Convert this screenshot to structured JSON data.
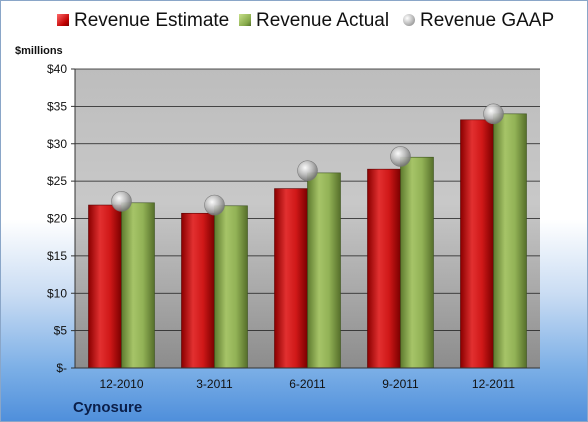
{
  "legend": {
    "estimate": "Revenue Estimate",
    "actual": "Revenue Actual",
    "gaap": "Revenue GAAP"
  },
  "units_label": "$millions",
  "company": "Cynosure",
  "colors": {
    "estimate": "#c81e1e",
    "actual": "#8fb050",
    "gaap": "#a8a8a8"
  },
  "chart_data": {
    "type": "bar",
    "title": "",
    "ylabel": "$millions",
    "xlabel": "",
    "categories": [
      "12-2010",
      "3-2011",
      "6-2011",
      "9-2011",
      "12-2011"
    ],
    "series": [
      {
        "name": "Revenue Estimate",
        "values": [
          21.8,
          20.7,
          24.0,
          26.6,
          33.2
        ]
      },
      {
        "name": "Revenue Actual",
        "values": [
          22.1,
          21.7,
          26.1,
          28.2,
          34.0
        ]
      },
      {
        "name": "Revenue GAAP",
        "values": [
          22.3,
          21.8,
          26.4,
          28.3,
          34.0
        ]
      }
    ],
    "ylim": [
      0,
      40
    ],
    "yticks": [
      0,
      5,
      10,
      15,
      20,
      25,
      30,
      35,
      40
    ],
    "ytick_labels": [
      "$-",
      "$5",
      "$10",
      "$15",
      "$20",
      "$25",
      "$30",
      "$35",
      "$40"
    ],
    "grid": true,
    "legend_position": "top"
  }
}
